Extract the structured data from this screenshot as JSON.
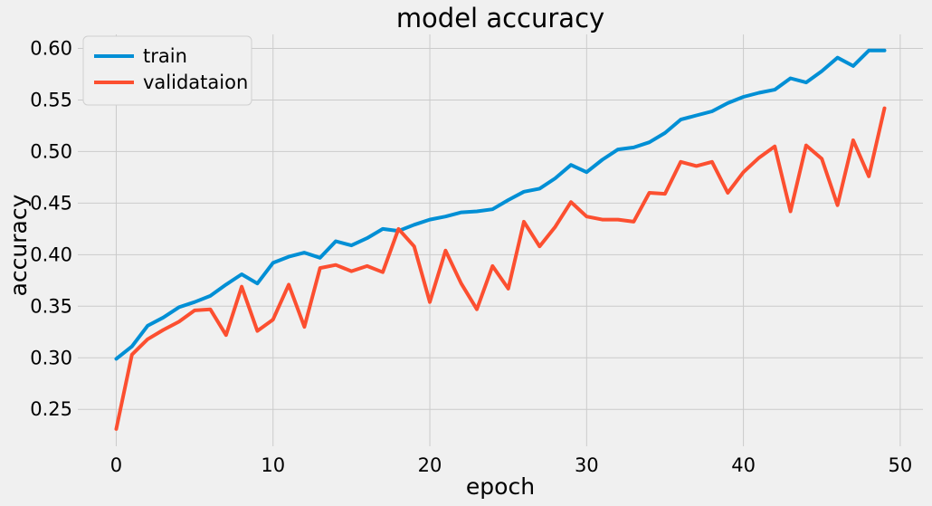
{
  "chart_data": {
    "type": "line",
    "title": "model accuracy",
    "xlabel": "epoch",
    "ylabel": "accuracy",
    "xlim": [
      -2.45,
      51.45
    ],
    "ylim": [
      0.2142,
      0.6136
    ],
    "xticks": [
      0,
      10,
      20,
      30,
      40,
      50
    ],
    "yticks": [
      0.25,
      0.3,
      0.35,
      0.4,
      0.45,
      0.5,
      0.55,
      0.6
    ],
    "xtick_labels": [
      "0",
      "10",
      "20",
      "30",
      "40",
      "50"
    ],
    "ytick_labels": [
      "0.25",
      "0.30",
      "0.35",
      "0.40",
      "0.45",
      "0.50",
      "0.55",
      "0.60"
    ],
    "grid": true,
    "legend_position": "upper-left",
    "x": [
      0,
      1,
      2,
      3,
      4,
      5,
      6,
      7,
      8,
      9,
      10,
      11,
      12,
      13,
      14,
      15,
      16,
      17,
      18,
      19,
      20,
      21,
      22,
      23,
      24,
      25,
      26,
      27,
      28,
      29,
      30,
      31,
      32,
      33,
      34,
      35,
      36,
      37,
      38,
      39,
      40,
      41,
      42,
      43,
      44,
      45,
      46,
      47,
      48,
      49
    ],
    "series": [
      {
        "name": "train",
        "color": "#008fd5",
        "values": [
          0.299,
          0.311,
          0.331,
          0.339,
          0.349,
          0.354,
          0.36,
          0.371,
          0.381,
          0.372,
          0.392,
          0.398,
          0.402,
          0.397,
          0.413,
          0.409,
          0.416,
          0.425,
          0.423,
          0.429,
          0.434,
          0.437,
          0.441,
          0.442,
          0.444,
          0.453,
          0.461,
          0.464,
          0.474,
          0.487,
          0.48,
          0.492,
          0.502,
          0.504,
          0.509,
          0.518,
          0.531,
          0.535,
          0.539,
          0.547,
          0.553,
          0.557,
          0.56,
          0.571,
          0.567,
          0.578,
          0.591,
          0.583,
          0.598,
          0.598
        ]
      },
      {
        "name": "validataion",
        "color": "#fc4f30",
        "values": [
          0.231,
          0.303,
          0.318,
          0.327,
          0.335,
          0.346,
          0.347,
          0.322,
          0.369,
          0.326,
          0.337,
          0.371,
          0.33,
          0.387,
          0.39,
          0.384,
          0.389,
          0.383,
          0.425,
          0.408,
          0.354,
          0.404,
          0.372,
          0.347,
          0.389,
          0.367,
          0.432,
          0.408,
          0.427,
          0.451,
          0.437,
          0.434,
          0.434,
          0.432,
          0.46,
          0.459,
          0.49,
          0.486,
          0.49,
          0.46,
          0.48,
          0.494,
          0.505,
          0.442,
          0.506,
          0.493,
          0.448,
          0.511,
          0.476,
          0.542
        ]
      }
    ]
  }
}
